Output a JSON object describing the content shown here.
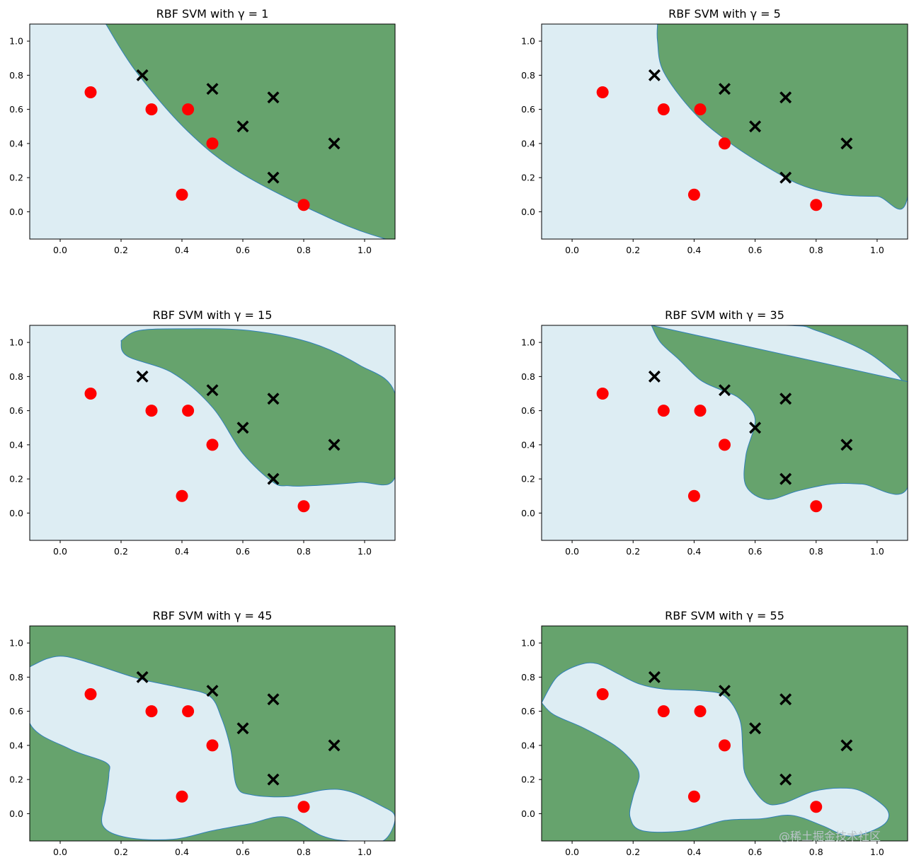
{
  "chart_data": {
    "type": "scatter",
    "figure_title": "",
    "description_kind": "SVM decision regions (contour fill) with two classes of training points",
    "xlim": [
      -0.1,
      1.1
    ],
    "ylim": [
      -0.16,
      1.1
    ],
    "xticks": [
      0.0,
      0.2,
      0.4,
      0.6,
      0.8,
      1.0
    ],
    "xtick_labels": [
      "0.0",
      "0.2",
      "0.4",
      "0.6",
      "0.8",
      "1.0"
    ],
    "yticks": [
      0.0,
      0.2,
      0.4,
      0.6,
      0.8,
      1.0
    ],
    "ytick_labels": [
      "0.0",
      "0.2",
      "0.4",
      "0.6",
      "0.8",
      "1.0"
    ],
    "colors": {
      "negative_region": "#ddedf3",
      "positive_region": "#66a36d",
      "boundary": "#2f7fb8",
      "class_o": "#ff0000",
      "class_x": "#000000"
    },
    "series": [
      {
        "name": "class 0 (red circles)",
        "marker": "o",
        "points": [
          [
            0.1,
            0.7
          ],
          [
            0.3,
            0.6
          ],
          [
            0.42,
            0.6
          ],
          [
            0.5,
            0.4
          ],
          [
            0.4,
            0.1
          ],
          [
            0.8,
            0.04
          ]
        ]
      },
      {
        "name": "class 1 (black crosses)",
        "marker": "x",
        "points": [
          [
            0.27,
            0.8
          ],
          [
            0.5,
            0.72
          ],
          [
            0.7,
            0.67
          ],
          [
            0.6,
            0.5
          ],
          [
            0.9,
            0.4
          ],
          [
            0.7,
            0.2
          ]
        ]
      }
    ],
    "panels": [
      {
        "title": "RBF SVM with γ = 1",
        "gamma": 1,
        "background": "negative",
        "regions": [
          [
            [
              0.15,
              1.1
            ],
            [
              1.1,
              1.1
            ],
            [
              1.1,
              -0.16
            ],
            [
              1.07,
              -0.16
            ],
            [
              0.9,
              -0.05
            ],
            [
              0.6,
              0.22
            ],
            [
              0.42,
              0.47
            ],
            [
              0.25,
              0.82
            ],
            [
              0.15,
              1.1
            ]
          ]
        ]
      },
      {
        "title": "RBF SVM with γ = 5",
        "gamma": 5,
        "background": "negative",
        "regions": [
          [
            [
              0.28,
              1.1
            ],
            [
              1.1,
              1.1
            ],
            [
              1.1,
              0.09
            ],
            [
              1.0,
              0.09
            ],
            [
              0.88,
              0.1
            ],
            [
              0.76,
              0.15
            ],
            [
              0.66,
              0.24
            ],
            [
              0.52,
              0.4
            ],
            [
              0.4,
              0.58
            ],
            [
              0.3,
              0.82
            ],
            [
              0.28,
              1.0
            ],
            [
              0.28,
              1.1
            ]
          ]
        ]
      },
      {
        "title": "RBF SVM with γ = 15",
        "gamma": 15,
        "background": "negative",
        "regions": [
          [
            [
              0.2,
              1.01
            ],
            [
              0.26,
              1.07
            ],
            [
              0.42,
              1.08
            ],
            [
              0.62,
              1.07
            ],
            [
              0.82,
              1.0
            ],
            [
              0.98,
              0.87
            ],
            [
              1.1,
              0.7
            ],
            [
              1.1,
              0.21
            ],
            [
              0.98,
              0.18
            ],
            [
              0.82,
              0.16
            ],
            [
              0.75,
              0.16
            ],
            [
              0.7,
              0.18
            ],
            [
              0.6,
              0.35
            ],
            [
              0.5,
              0.62
            ],
            [
              0.37,
              0.82
            ],
            [
              0.22,
              0.92
            ],
            [
              0.2,
              1.01
            ]
          ]
        ]
      },
      {
        "title": "RBF SVM with γ = 35",
        "gamma": 35,
        "background": "negative",
        "regions": [
          [
            [
              0.26,
              1.1
            ],
            [
              1.1,
              1.1
            ],
            [
              1.1,
              0.77
            ],
            [
              1.06,
              0.82
            ],
            [
              0.96,
              0.95
            ],
            [
              0.8,
              1.07
            ],
            [
              0.7,
              1.1
            ],
            [
              0.26,
              1.1
            ]
          ],
          [
            [
              0.26,
              1.1
            ],
            [
              0.29,
              1.0
            ],
            [
              0.35,
              0.9
            ],
            [
              0.42,
              0.78
            ],
            [
              0.49,
              0.72
            ],
            [
              0.55,
              0.67
            ],
            [
              0.6,
              0.55
            ],
            [
              0.57,
              0.34
            ],
            [
              0.57,
              0.16
            ],
            [
              0.64,
              0.08
            ],
            [
              0.74,
              0.13
            ],
            [
              0.85,
              0.17
            ],
            [
              0.95,
              0.17
            ],
            [
              1.1,
              0.15
            ],
            [
              1.1,
              0.77
            ]
          ]
        ]
      },
      {
        "title": "RBF SVM with γ = 45",
        "gamma": 45,
        "background": "positive",
        "regions": [
          [
            [
              -0.1,
              0.86
            ],
            [
              -0.04,
              0.91
            ],
            [
              0.02,
              0.92
            ],
            [
              0.12,
              0.87
            ],
            [
              0.26,
              0.79
            ],
            [
              0.39,
              0.74
            ],
            [
              0.49,
              0.69
            ],
            [
              0.53,
              0.56
            ],
            [
              0.56,
              0.38
            ],
            [
              0.58,
              0.16
            ],
            [
              0.63,
              0.11
            ],
            [
              0.75,
              0.1
            ],
            [
              0.87,
              0.14
            ],
            [
              0.95,
              0.13
            ],
            [
              1.05,
              0.05
            ],
            [
              1.1,
              -0.02
            ],
            [
              1.06,
              -0.16
            ],
            [
              0.95,
              -0.16
            ],
            [
              0.86,
              -0.13
            ],
            [
              0.74,
              -0.02
            ],
            [
              0.62,
              -0.06
            ],
            [
              0.5,
              -0.1
            ],
            [
              0.37,
              -0.15
            ],
            [
              0.22,
              -0.14
            ],
            [
              0.14,
              -0.07
            ],
            [
              0.15,
              0.09
            ],
            [
              0.16,
              0.23
            ],
            [
              0.15,
              0.3
            ],
            [
              0.03,
              0.38
            ],
            [
              -0.1,
              0.53
            ],
            [
              -0.1,
              0.86
            ]
          ]
        ]
      },
      {
        "title": "RBF SVM with γ = 55",
        "gamma": 55,
        "background": "positive",
        "regions": [
          [
            [
              -0.1,
              0.65
            ],
            [
              -0.05,
              0.8
            ],
            [
              0.02,
              0.87
            ],
            [
              0.08,
              0.88
            ],
            [
              0.15,
              0.82
            ],
            [
              0.22,
              0.76
            ],
            [
              0.3,
              0.73
            ],
            [
              0.42,
              0.72
            ],
            [
              0.5,
              0.69
            ],
            [
              0.55,
              0.55
            ],
            [
              0.56,
              0.35
            ],
            [
              0.57,
              0.22
            ],
            [
              0.63,
              0.07
            ],
            [
              0.69,
              0.06
            ],
            [
              0.79,
              0.13
            ],
            [
              0.88,
              0.15
            ],
            [
              0.95,
              0.13
            ],
            [
              1.03,
              0.03
            ],
            [
              1.03,
              -0.05
            ],
            [
              0.97,
              -0.11
            ],
            [
              0.9,
              -0.13
            ],
            [
              0.82,
              -0.07
            ],
            [
              0.72,
              -0.01
            ],
            [
              0.62,
              -0.03
            ],
            [
              0.5,
              -0.04
            ],
            [
              0.37,
              -0.1
            ],
            [
              0.23,
              -0.1
            ],
            [
              0.19,
              -0.02
            ],
            [
              0.2,
              0.1
            ],
            [
              0.22,
              0.22
            ],
            [
              0.2,
              0.3
            ],
            [
              0.14,
              0.4
            ],
            [
              0.04,
              0.5
            ],
            [
              -0.06,
              0.58
            ],
            [
              -0.1,
              0.65
            ]
          ]
        ]
      }
    ]
  },
  "watermark": "@稀土掘金技术社区"
}
